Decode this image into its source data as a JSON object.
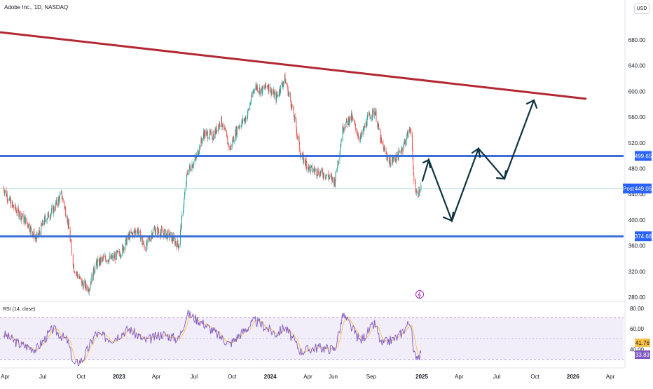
{
  "header": {
    "symbol_line": "Adobe Inc., 1D, NASDAQ",
    "currency": "USD"
  },
  "rsi": {
    "label": "RSI (14, close)",
    "value_a": "41.76",
    "value_b": "33.83"
  },
  "chart_data": {
    "type": "candlestick",
    "y_ticks": [
      "680.00",
      "640.00",
      "600.00",
      "560.00",
      "520.00",
      "480.00",
      "440.00",
      "400.00",
      "360.00",
      "320.00",
      "280.00"
    ],
    "y_values": [
      680,
      640,
      600,
      560,
      520,
      480,
      440,
      400,
      360,
      320,
      280
    ],
    "x_ticks": [
      "Apr",
      "Jul",
      "Oct",
      "2023",
      "Apr",
      "Jul",
      "Oct",
      "2024",
      "Apr",
      "Jun",
      "Sep",
      "2025",
      "Apr",
      "Jul",
      "Oct",
      "2026",
      "Apr"
    ],
    "x_ticks_bold": [
      "2023",
      "2024",
      "2025",
      "2026"
    ],
    "rsi_ticks": [
      "80.00",
      "60.00",
      "40.00"
    ],
    "rsi_values": [
      80,
      60,
      40
    ],
    "price_levels": [
      {
        "label": "499.65",
        "value": 499.65,
        "color": "#2962ff"
      },
      {
        "label": "449.05",
        "value": 449.05,
        "color": "#2962ff",
        "prefix": "Post"
      },
      {
        "label": "374.66",
        "value": 374.66,
        "color": "#2962ff"
      }
    ],
    "colors": {
      "up": "#26a69a",
      "down": "#ef5350",
      "trendline": "#b22833",
      "hline": "#3a6fd8",
      "arrows": "#0d3340",
      "rsi": "#7e57c2"
    },
    "price_series": [
      {
        "date": "2022-03-28",
        "close": 450
      },
      {
        "date": "2022-04-15",
        "close": 425
      },
      {
        "date": "2022-05-05",
        "close": 410
      },
      {
        "date": "2022-05-25",
        "close": 395
      },
      {
        "date": "2022-06-15",
        "close": 370
      },
      {
        "date": "2022-07-05",
        "close": 400
      },
      {
        "date": "2022-07-25",
        "close": 415
      },
      {
        "date": "2022-08-15",
        "close": 440
      },
      {
        "date": "2022-08-30",
        "close": 400
      },
      {
        "date": "2022-09-14",
        "close": 325
      },
      {
        "date": "2022-10-05",
        "close": 300
      },
      {
        "date": "2022-10-20",
        "close": 295
      },
      {
        "date": "2022-11-05",
        "close": 330
      },
      {
        "date": "2022-11-25",
        "close": 340
      },
      {
        "date": "2022-12-15",
        "close": 340
      },
      {
        "date": "2023-01-05",
        "close": 350
      },
      {
        "date": "2023-01-25",
        "close": 375
      },
      {
        "date": "2023-02-15",
        "close": 385
      },
      {
        "date": "2023-03-05",
        "close": 355
      },
      {
        "date": "2023-03-25",
        "close": 385
      },
      {
        "date": "2023-04-15",
        "close": 380
      },
      {
        "date": "2023-05-05",
        "close": 375
      },
      {
        "date": "2023-05-25",
        "close": 360
      },
      {
        "date": "2023-06-15",
        "close": 475
      },
      {
        "date": "2023-07-05",
        "close": 495
      },
      {
        "date": "2023-07-25",
        "close": 535
      },
      {
        "date": "2023-08-15",
        "close": 530
      },
      {
        "date": "2023-09-05",
        "close": 555
      },
      {
        "date": "2023-09-25",
        "close": 510
      },
      {
        "date": "2023-10-15",
        "close": 545
      },
      {
        "date": "2023-11-05",
        "close": 560
      },
      {
        "date": "2023-11-25",
        "close": 610
      },
      {
        "date": "2023-12-10",
        "close": 600
      },
      {
        "date": "2023-12-25",
        "close": 610
      },
      {
        "date": "2024-01-15",
        "close": 590
      },
      {
        "date": "2024-02-05",
        "close": 620
      },
      {
        "date": "2024-02-25",
        "close": 570
      },
      {
        "date": "2024-03-15",
        "close": 500
      },
      {
        "date": "2024-04-05",
        "close": 480
      },
      {
        "date": "2024-04-25",
        "close": 475
      },
      {
        "date": "2024-05-15",
        "close": 470
      },
      {
        "date": "2024-06-05",
        "close": 460
      },
      {
        "date": "2024-06-25",
        "close": 545
      },
      {
        "date": "2024-07-15",
        "close": 560
      },
      {
        "date": "2024-08-05",
        "close": 525
      },
      {
        "date": "2024-08-25",
        "close": 560
      },
      {
        "date": "2024-09-10",
        "close": 570
      },
      {
        "date": "2024-09-25",
        "close": 520
      },
      {
        "date": "2024-10-15",
        "close": 490
      },
      {
        "date": "2024-11-05",
        "close": 500
      },
      {
        "date": "2024-11-20",
        "close": 520
      },
      {
        "date": "2024-12-05",
        "close": 545
      },
      {
        "date": "2024-12-12",
        "close": 470
      },
      {
        "date": "2024-12-20",
        "close": 440
      },
      {
        "date": "2024-12-30",
        "close": 449
      }
    ],
    "rsi_series": [
      {
        "date": "2022-03-28",
        "value": 55
      },
      {
        "date": "2022-05-05",
        "value": 45
      },
      {
        "date": "2022-06-15",
        "value": 40
      },
      {
        "date": "2022-07-25",
        "value": 60
      },
      {
        "date": "2022-08-30",
        "value": 48
      },
      {
        "date": "2022-09-14",
        "value": 25
      },
      {
        "date": "2022-10-05",
        "value": 30
      },
      {
        "date": "2022-11-05",
        "value": 55
      },
      {
        "date": "2022-12-15",
        "value": 50
      },
      {
        "date": "2023-01-25",
        "value": 60
      },
      {
        "date": "2023-03-05",
        "value": 48
      },
      {
        "date": "2023-04-15",
        "value": 55
      },
      {
        "date": "2023-05-25",
        "value": 50
      },
      {
        "date": "2023-06-15",
        "value": 75
      },
      {
        "date": "2023-07-25",
        "value": 65
      },
      {
        "date": "2023-09-25",
        "value": 45
      },
      {
        "date": "2023-11-25",
        "value": 68
      },
      {
        "date": "2024-01-15",
        "value": 55
      },
      {
        "date": "2024-02-05",
        "value": 62
      },
      {
        "date": "2024-03-15",
        "value": 38
      },
      {
        "date": "2024-04-25",
        "value": 42
      },
      {
        "date": "2024-06-05",
        "value": 40
      },
      {
        "date": "2024-06-25",
        "value": 74
      },
      {
        "date": "2024-08-05",
        "value": 48
      },
      {
        "date": "2024-09-10",
        "value": 65
      },
      {
        "date": "2024-09-25",
        "value": 45
      },
      {
        "date": "2024-11-05",
        "value": 52
      },
      {
        "date": "2024-12-05",
        "value": 68
      },
      {
        "date": "2024-12-12",
        "value": 35
      },
      {
        "date": "2024-12-30",
        "value": 33.83
      }
    ]
  }
}
